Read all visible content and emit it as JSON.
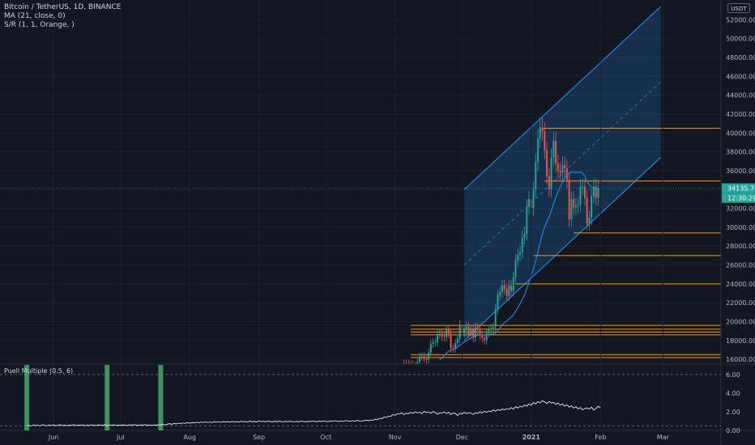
{
  "legend": {
    "symbol": "Bitcoin / TetherUS, 1D, BINANCE",
    "ma": "MA (21, close, 0)",
    "sr": "S/R (1, 1, Orange, )"
  },
  "currency_badge": "USDT",
  "last_price": {
    "value": "34135.74",
    "countdown": "12:30:29",
    "color": "#26a69a"
  },
  "indicator": {
    "label": "Puell Multiple (0.5, 6)"
  },
  "colors": {
    "background": "#131722",
    "up": "#26a69a",
    "down": "#ef5350",
    "ma": "#2196f3",
    "sr_lines": "#ff9800",
    "channel": "#2196f3",
    "puell_line": "#ffffff",
    "puell_bars": "#4caf76"
  },
  "chart_data": [
    {
      "type": "candlestick",
      "y_axis_labels": [
        "52000.00",
        "50000.00",
        "48000.00",
        "46000.00",
        "44000.00",
        "42000.00",
        "40000.00",
        "38000.00",
        "36000.00",
        "34000.00",
        "32000.00",
        "30000.00",
        "28000.00",
        "26000.00",
        "24000.00",
        "22000.00",
        "20000.00",
        "18000.00",
        "16000.00"
      ],
      "ylim": [
        15500,
        53400
      ],
      "x_axis_labels": [
        "Jun",
        "Jul",
        "Aug",
        "Sep",
        "Oct",
        "Nov",
        "Dec",
        "2021",
        "Feb",
        "Mar"
      ],
      "x_axis_dates": [
        "2020-06-01",
        "2020-07-01",
        "2020-08-01",
        "2020-09-01",
        "2020-10-01",
        "2020-11-01",
        "2020-12-01",
        "2021-01-01",
        "2021-02-01",
        "2021-03-01"
      ],
      "ohlc_date_start": "2020-11-01",
      "ohlc_close": [
        13760,
        13550,
        14020,
        14140,
        15590,
        15580,
        14830,
        15480,
        15320,
        15300,
        15700,
        16280,
        16330,
        16070,
        15960,
        16720,
        17660,
        17800,
        17820,
        18660,
        18700,
        18420,
        18370,
        19150,
        18730,
        17150,
        17140,
        17720,
        18180,
        19690,
        18790,
        19200,
        19440,
        18650,
        19150,
        18320,
        19370,
        19140,
        18560,
        18240,
        18030,
        18800,
        19170,
        19270,
        19440,
        21310,
        22800,
        23130,
        23860,
        23480,
        22750,
        23830,
        23250,
        24700,
        26490,
        27080,
        27360,
        28900,
        29300,
        32180,
        33000,
        32040,
        34050,
        36880,
        39430,
        40580,
        40150,
        38150,
        35400,
        34050,
        37400,
        39140,
        36770,
        36000,
        35800,
        36600,
        36250,
        35000,
        30850,
        33000,
        32100,
        32280,
        32400,
        34300,
        34300,
        33100,
        30400,
        31000,
        33300,
        34300,
        33100,
        34135
      ],
      "ma_period": 21,
      "sr_lines": [
        40500,
        34900,
        29400,
        27000,
        24000,
        19600,
        19200,
        18900,
        18600,
        16500,
        16200
      ],
      "last_price_line": 34135.74,
      "regression_channel": {
        "start_date": "2020-12-02",
        "end_date": "2021-02-28",
        "lower_start": 18000,
        "lower_end": 37400,
        "upper_start": 34000,
        "upper_end": 53400
      }
    },
    {
      "type": "line",
      "title": "Puell Multiple (0.5, 6)",
      "y_axis_labels": [
        "6.00",
        "4.00",
        "2.00",
        "0.00"
      ],
      "ylim": [
        0,
        6.6
      ],
      "reference_levels": [
        6.0,
        0.5
      ],
      "values_start_date": "2020-05-20",
      "values": [
        0.51,
        0.55,
        0.48,
        0.6,
        0.52,
        0.57,
        0.47,
        0.62,
        0.55,
        0.5,
        0.58,
        0.53,
        0.6,
        0.49,
        0.56,
        0.61,
        0.52,
        0.58,
        0.5,
        0.57,
        0.55,
        0.63,
        0.52,
        0.58,
        0.55,
        0.6,
        0.5,
        0.57,
        0.54,
        0.61,
        0.56,
        0.52,
        0.6,
        0.58,
        0.55,
        0.62,
        0.5,
        0.59,
        0.56,
        0.61,
        0.53,
        0.58,
        0.55,
        0.6,
        0.57,
        0.52,
        0.6,
        0.56,
        0.62,
        0.58,
        0.54,
        0.6,
        0.57,
        0.63,
        0.55,
        0.59,
        0.52,
        0.6,
        0.56,
        0.62,
        0.58,
        0.65,
        0.6,
        0.68,
        0.72,
        0.66,
        0.75,
        0.7,
        0.78,
        0.74,
        0.8,
        0.76,
        0.83,
        0.78,
        0.85,
        0.8,
        0.88,
        0.82,
        0.9,
        0.85,
        0.92,
        0.86,
        0.9,
        0.84,
        0.95,
        0.88,
        0.92,
        0.87,
        0.96,
        0.9,
        0.94,
        0.88,
        0.97,
        0.91,
        0.95,
        0.9,
        0.98,
        0.92,
        0.96,
        0.9,
        1.0,
        0.93,
        0.97,
        0.91,
        1.02,
        0.95,
        0.99,
        0.93,
        1.0,
        0.96,
        0.92,
        0.98,
        0.94,
        1.0,
        0.95,
        0.91,
        0.98,
        0.94,
        0.99,
        0.95,
        0.92,
        0.97,
        0.93,
        1.0,
        0.96,
        0.92,
        0.98,
        0.95,
        1.02,
        0.97,
        0.94,
        1.0,
        0.96,
        1.03,
        0.98,
        0.95,
        1.01,
        0.97,
        1.05,
        1.0,
        0.96,
        1.03,
        0.99,
        1.06,
        1.01,
        0.98,
        1.04,
        1.0,
        1.08,
        1.03,
        0.99,
        1.05,
        1.1,
        1.04,
        1.12,
        1.08,
        1.2,
        1.15,
        1.3,
        1.25,
        1.45,
        1.38,
        1.55,
        1.5,
        1.7,
        1.62,
        1.8,
        1.75,
        1.9,
        1.7,
        1.85,
        1.78,
        1.95,
        1.82,
        2.0,
        1.88,
        1.95,
        1.8,
        2.05,
        1.9,
        1.98,
        1.85,
        2.02,
        1.92,
        1.75,
        1.9,
        1.85,
        2.0,
        1.8,
        1.95,
        1.7,
        1.88,
        1.82,
        1.6,
        1.85,
        1.78,
        1.95,
        1.8,
        1.9,
        1.85,
        1.72,
        1.9,
        1.82,
        2.0,
        1.88,
        2.05,
        1.95,
        2.1,
        2.0,
        2.2,
        2.05,
        2.25,
        2.15,
        2.3,
        2.2,
        2.35,
        2.25,
        2.45,
        2.3,
        2.55,
        2.4,
        2.6,
        2.5,
        2.75,
        2.6,
        2.85,
        2.7,
        3.0,
        2.85,
        3.1,
        2.95,
        3.2,
        3.05,
        2.9,
        3.1,
        2.95,
        3.0,
        2.8,
        2.95,
        2.7,
        2.85,
        2.6,
        2.75,
        2.5,
        2.65,
        2.4,
        2.55,
        2.3,
        2.45,
        2.2,
        2.35,
        2.4,
        2.3,
        2.5,
        2.2,
        2.35,
        2.6,
        2.4
      ],
      "highlight_bars": [
        "2020-05-20",
        "2020-06-25",
        "2020-07-19"
      ]
    }
  ]
}
